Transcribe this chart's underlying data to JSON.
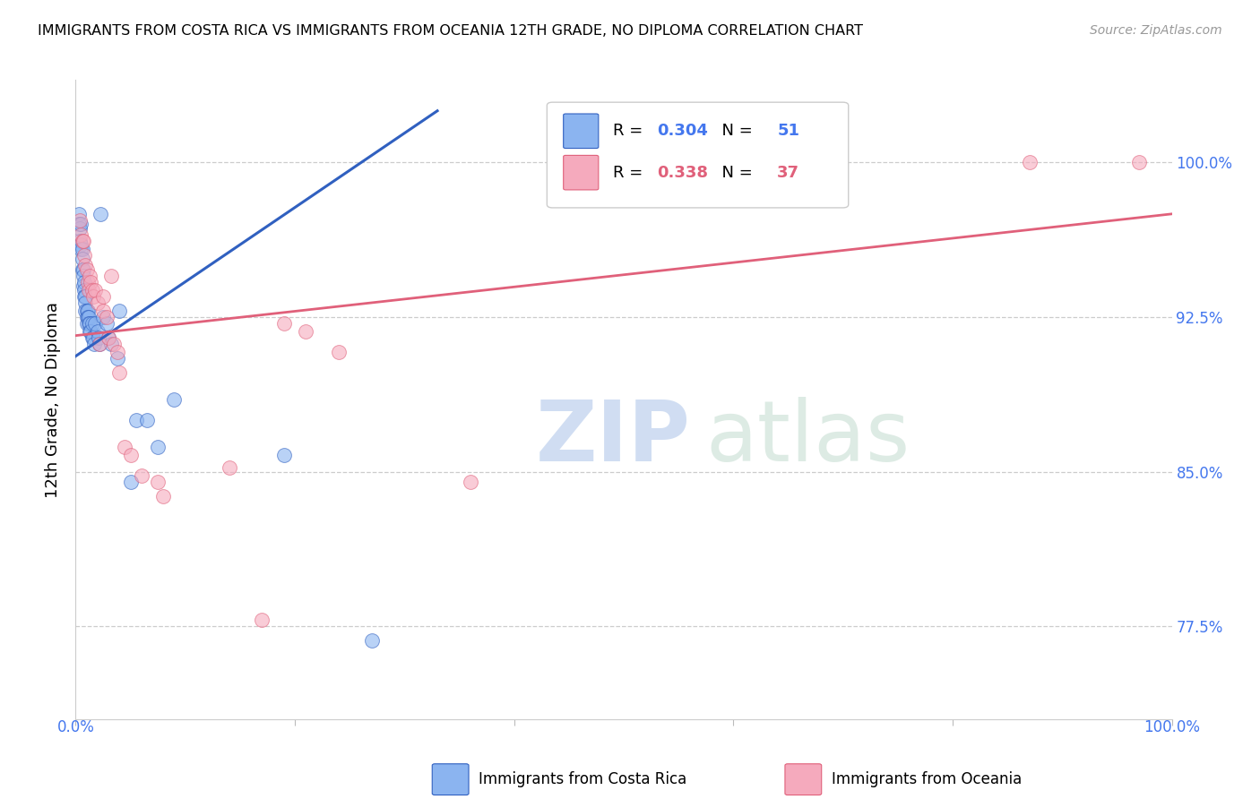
{
  "title": "IMMIGRANTS FROM COSTA RICA VS IMMIGRANTS FROM OCEANIA 12TH GRADE, NO DIPLOMA CORRELATION CHART",
  "source": "Source: ZipAtlas.com",
  "ylabel": "12th Grade, No Diploma",
  "ytick_values": [
    0.775,
    0.85,
    0.925,
    1.0
  ],
  "ytick_labels": [
    "77.5%",
    "85.0%",
    "92.5%",
    "100.0%"
  ],
  "xlim": [
    0.0,
    1.0
  ],
  "ylim": [
    0.73,
    1.04
  ],
  "legend_blue_R": "0.304",
  "legend_blue_N": "51",
  "legend_pink_R": "0.338",
  "legend_pink_N": "37",
  "blue_color": "#8BB4F0",
  "pink_color": "#F5AABD",
  "blue_line_color": "#3060C0",
  "pink_line_color": "#E0607A",
  "watermark_zip": "ZIP",
  "watermark_atlas": "atlas",
  "blue_scatter_x": [
    0.003,
    0.003,
    0.004,
    0.004,
    0.005,
    0.005,
    0.005,
    0.006,
    0.006,
    0.006,
    0.007,
    0.007,
    0.007,
    0.008,
    0.008,
    0.008,
    0.009,
    0.009,
    0.009,
    0.01,
    0.01,
    0.01,
    0.011,
    0.011,
    0.012,
    0.012,
    0.013,
    0.013,
    0.014,
    0.015,
    0.015,
    0.016,
    0.017,
    0.018,
    0.02,
    0.021,
    0.022,
    0.023,
    0.025,
    0.028,
    0.03,
    0.032,
    0.038,
    0.04,
    0.05,
    0.055,
    0.065,
    0.075,
    0.09,
    0.19,
    0.27
  ],
  "blue_scatter_y": [
    0.975,
    0.97,
    0.968,
    0.962,
    0.96,
    0.958,
    0.97,
    0.958,
    0.953,
    0.948,
    0.948,
    0.945,
    0.94,
    0.942,
    0.938,
    0.935,
    0.935,
    0.932,
    0.928,
    0.928,
    0.925,
    0.922,
    0.928,
    0.925,
    0.925,
    0.922,
    0.922,
    0.918,
    0.918,
    0.915,
    0.922,
    0.915,
    0.912,
    0.922,
    0.918,
    0.915,
    0.912,
    0.975,
    0.925,
    0.922,
    0.915,
    0.912,
    0.905,
    0.928,
    0.845,
    0.875,
    0.875,
    0.862,
    0.885,
    0.858,
    0.768
  ],
  "pink_scatter_x": [
    0.004,
    0.005,
    0.006,
    0.007,
    0.008,
    0.009,
    0.01,
    0.011,
    0.012,
    0.013,
    0.014,
    0.015,
    0.016,
    0.018,
    0.02,
    0.022,
    0.025,
    0.025,
    0.028,
    0.03,
    0.032,
    0.035,
    0.038,
    0.04,
    0.045,
    0.05,
    0.06,
    0.075,
    0.08,
    0.14,
    0.17,
    0.19,
    0.21,
    0.24,
    0.36,
    0.87,
    0.97
  ],
  "pink_scatter_y": [
    0.972,
    0.965,
    0.962,
    0.962,
    0.955,
    0.95,
    0.948,
    0.942,
    0.938,
    0.945,
    0.942,
    0.938,
    0.935,
    0.938,
    0.932,
    0.912,
    0.928,
    0.935,
    0.925,
    0.915,
    0.945,
    0.912,
    0.908,
    0.898,
    0.862,
    0.858,
    0.848,
    0.845,
    0.838,
    0.852,
    0.778,
    0.922,
    0.918,
    0.908,
    0.845,
    1.0,
    1.0
  ],
  "blue_line_x": [
    0.0,
    0.33
  ],
  "blue_line_y": [
    0.906,
    1.025
  ],
  "pink_line_x": [
    0.0,
    1.0
  ],
  "pink_line_y": [
    0.916,
    0.975
  ]
}
